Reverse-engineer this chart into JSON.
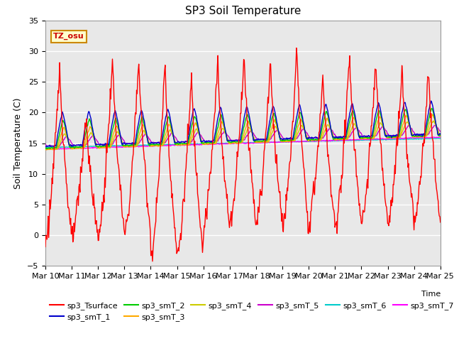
{
  "title": "SP3 Soil Temperature",
  "ylabel": "Soil Temperature (C)",
  "xlabel": "Time",
  "annotation": "TZ_osu",
  "ylim": [
    -5,
    35
  ],
  "yticks": [
    -5,
    0,
    5,
    10,
    15,
    20,
    25,
    30,
    35
  ],
  "xtick_labels": [
    "Mar 10",
    "Mar 11",
    "Mar 12",
    "Mar 13",
    "Mar 14",
    "Mar 15",
    "Mar 16",
    "Mar 17",
    "Mar 18",
    "Mar 19",
    "Mar 20",
    "Mar 21",
    "Mar 22",
    "Mar 23",
    "Mar 24",
    "Mar 25"
  ],
  "series_colors": {
    "sp3_Tsurface": "#ff0000",
    "sp3_smT_1": "#0000cc",
    "sp3_smT_2": "#00cc00",
    "sp3_smT_3": "#ffaa00",
    "sp3_smT_4": "#cccc00",
    "sp3_smT_5": "#cc00cc",
    "sp3_smT_6": "#00cccc",
    "sp3_smT_7": "#ff00ff"
  },
  "bg_color": "#e8e8e8",
  "grid_color": "#ffffff",
  "n_days": 15,
  "pts_per_day": 48
}
